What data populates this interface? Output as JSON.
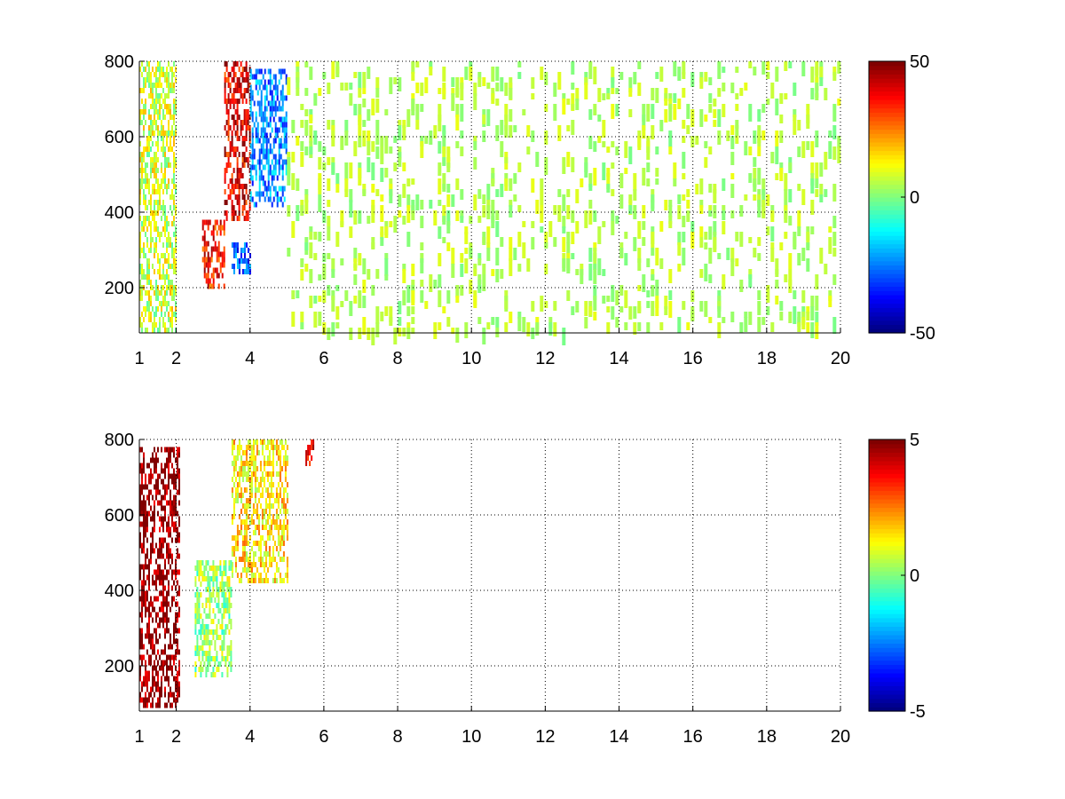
{
  "chart_data": [
    {
      "type": "heatmap",
      "title": "",
      "xlabel": "",
      "ylabel": "",
      "xlim": [
        1,
        20
      ],
      "ylim": [
        80,
        800
      ],
      "xticks": [
        1,
        2,
        4,
        6,
        8,
        10,
        12,
        14,
        16,
        18,
        20
      ],
      "yticks": [
        200,
        400,
        600,
        800
      ],
      "grid": true,
      "colormap": "jet",
      "clim": [
        -50,
        50
      ],
      "colorbar_ticks": [
        -50,
        0,
        50
      ],
      "features": [
        {
          "desc": "vertical banding",
          "x": [
            1.0,
            2.0
          ],
          "y": [
            80,
            800
          ],
          "value": 8
        },
        {
          "desc": "strong positive ridge",
          "x": [
            3.3,
            4.0
          ],
          "y": [
            380,
            800
          ],
          "value": 40
        },
        {
          "desc": "positive low-y feature",
          "x": [
            2.7,
            3.3
          ],
          "y": [
            200,
            380
          ],
          "value": 35
        },
        {
          "desc": "negative region",
          "x": [
            4.0,
            5.0
          ],
          "y": [
            420,
            780
          ],
          "value": -25
        },
        {
          "desc": "negative spot",
          "x": [
            3.5,
            4.0
          ],
          "y": [
            240,
            320
          ],
          "value": -30
        },
        {
          "desc": "sparse scatter",
          "x": [
            5.0,
            20.0
          ],
          "y": [
            80,
            800
          ],
          "value": 5
        }
      ]
    },
    {
      "type": "heatmap",
      "title": "",
      "xlabel": "",
      "ylabel": "",
      "xlim": [
        1,
        20
      ],
      "ylim": [
        80,
        800
      ],
      "xticks": [
        1,
        2,
        4,
        6,
        8,
        10,
        12,
        14,
        16,
        18,
        20
      ],
      "yticks": [
        200,
        400,
        600,
        800
      ],
      "grid": true,
      "colormap": "jet",
      "clim": [
        -5,
        5
      ],
      "colorbar_ticks": [
        -5,
        0,
        5
      ],
      "features": [
        {
          "desc": "mixed extreme lines",
          "x": [
            1.0,
            2.1
          ],
          "y": [
            100,
            780
          ],
          "value": 5
        },
        {
          "desc": "positive blob",
          "x": [
            3.5,
            5.0
          ],
          "y": [
            420,
            800
          ],
          "value": 1.5
        },
        {
          "desc": "low-y weak positive",
          "x": [
            2.5,
            3.5
          ],
          "y": [
            180,
            480
          ],
          "value": 0.3
        },
        {
          "desc": "isolated spot",
          "x": [
            5.5,
            5.7
          ],
          "y": [
            740,
            800
          ],
          "value": 4
        }
      ]
    }
  ]
}
